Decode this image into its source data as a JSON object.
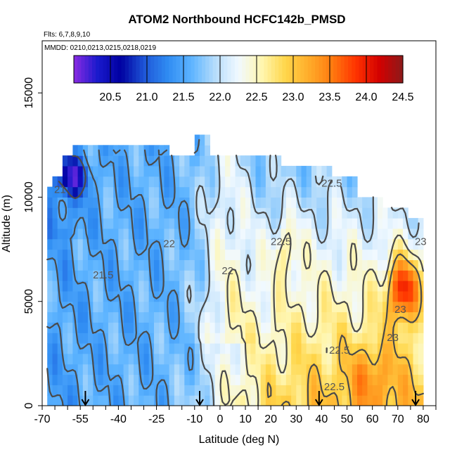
{
  "chart_data": {
    "type": "heatmap",
    "title": "ATOM2 Northbound HCFC142b_PMSD",
    "flights_text": "Flts: 6,7,8,9,10",
    "mmdd_text": "MMDD: 0210,0213,0215,0218,0219",
    "xlabel": "Latitude (deg N)",
    "ylabel": "Altitude (m)",
    "xlim": [
      -70,
      85
    ],
    "ylim": [
      0,
      17500
    ],
    "x_ticks": [
      -70,
      -55,
      -40,
      -25,
      -10,
      0,
      10,
      20,
      30,
      40,
      50,
      60,
      70,
      80
    ],
    "x_tick_labels": [
      "-70",
      "-55",
      "-40",
      "-25",
      "-10",
      "0",
      "10",
      "20",
      "30",
      "40",
      "50",
      "60",
      "70",
      "80"
    ],
    "y_ticks": [
      0,
      5000,
      10000,
      15000
    ],
    "y_tick_labels": [
      "0",
      "5000",
      "10000",
      "15000"
    ],
    "colorbar": {
      "min": 20.0,
      "max": 24.5,
      "ticks": [
        20.5,
        21.0,
        21.5,
        22.0,
        22.5,
        23.0,
        23.5,
        24.0,
        24.5
      ],
      "tick_labels": [
        "20.5",
        "21.0",
        "21.5",
        "22.0",
        "22.5",
        "23.0",
        "23.5",
        "24.0",
        "24.5"
      ],
      "colors": [
        "#8a2be2",
        "#1a1acd",
        "#0000a0",
        "#1e56d8",
        "#2f8cf2",
        "#5db4ff",
        "#b5dcfb",
        "#f1f9ff",
        "#fff6b0",
        "#ffd64a",
        "#ffac2a",
        "#ff7a0f",
        "#ff3300",
        "#d30000",
        "#8b1a1a"
      ]
    },
    "contour_labels": [
      {
        "text": "21",
        "x": -63,
        "y": 10200
      },
      {
        "text": "21.5",
        "x": -46,
        "y": 6100
      },
      {
        "text": "22",
        "x": -20,
        "y": 7600
      },
      {
        "text": "22",
        "x": 3,
        "y": 6300
      },
      {
        "text": "22.5",
        "x": 24,
        "y": 7700
      },
      {
        "text": "22.5",
        "x": 44,
        "y": 10500
      },
      {
        "text": "22.5",
        "x": 47,
        "y": 2500
      },
      {
        "text": "22.5",
        "x": 45,
        "y": 750
      },
      {
        "text": "23",
        "x": 71,
        "y": 4450
      },
      {
        "text": "23",
        "x": 68,
        "y": 3100
      },
      {
        "text": "23",
        "x": 79,
        "y": 7700
      }
    ],
    "flight_markers_lat": [
      -53,
      -8,
      39,
      77
    ],
    "data_grid": {
      "lat_min": -68,
      "lat_max": 80,
      "lat_step": 2,
      "alt_step": 500,
      "note_source": "value field sampled on grid"
    }
  }
}
